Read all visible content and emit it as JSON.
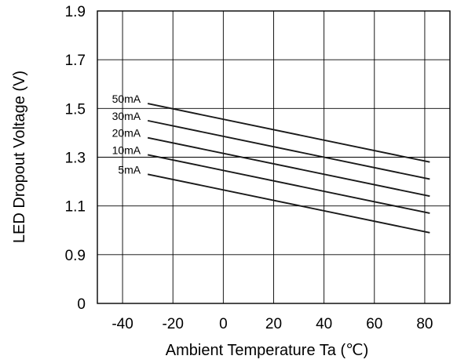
{
  "chart_data": {
    "type": "line",
    "title": "",
    "xlabel": "Ambient Temperature Ta (℃)",
    "ylabel": "LED Dropout Voltage (V)",
    "x_ticks": [
      -40,
      -20,
      0,
      20,
      40,
      60,
      80
    ],
    "x_tick_labels": [
      "-40",
      "-20",
      "0",
      "20",
      "40",
      "60",
      "80"
    ],
    "y_tick_labels": [
      "0",
      "0.9",
      "1.1",
      "1.3",
      "1.5",
      "1.7",
      "1.9"
    ],
    "y_tick_values": [
      0,
      0.9,
      1.1,
      1.3,
      1.5,
      1.7,
      1.9
    ],
    "xlim": [
      -50,
      90
    ],
    "grid": true,
    "line_color": "#1a1a1a",
    "series": [
      {
        "name": "50mA",
        "x": [
          -30,
          82
        ],
        "y": [
          1.52,
          1.28
        ]
      },
      {
        "name": "30mA",
        "x": [
          -30,
          82
        ],
        "y": [
          1.45,
          1.21
        ]
      },
      {
        "name": "20mA",
        "x": [
          -30,
          82
        ],
        "y": [
          1.38,
          1.14
        ]
      },
      {
        "name": "10mA",
        "x": [
          -30,
          82
        ],
        "y": [
          1.31,
          1.07
        ]
      },
      {
        "name": "5mA",
        "x": [
          -30,
          82
        ],
        "y": [
          1.23,
          0.99
        ]
      }
    ]
  }
}
